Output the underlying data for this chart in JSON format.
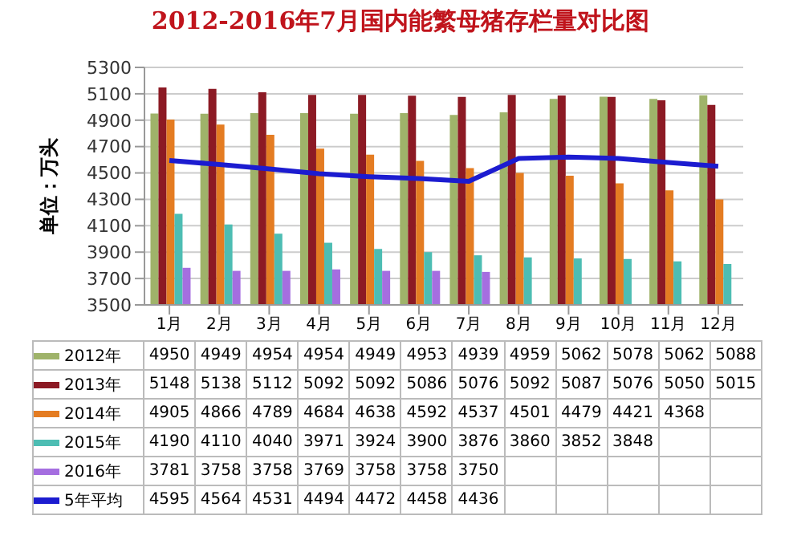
{
  "chart_data": {
    "type": "bar",
    "title": "2012-2016年7月国内能繁母猪存栏量对比图",
    "ylabel": "单位：万头",
    "categories": [
      "1月",
      "2月",
      "3月",
      "4月",
      "5月",
      "6月",
      "7月",
      "8月",
      "9月",
      "10月",
      "11月",
      "12月"
    ],
    "ylim": [
      3500,
      5300
    ],
    "yticks": [
      3500,
      3700,
      3900,
      4100,
      4300,
      4500,
      4700,
      4900,
      5100,
      5300
    ],
    "grid": "y",
    "legend": "bottom",
    "series": [
      {
        "name": "2012年",
        "color": "#9fb36a",
        "values": [
          4950,
          4949,
          4954,
          4954,
          4949,
          4953,
          4939,
          4959,
          5062,
          5078,
          5062,
          5088
        ],
        "value_labels": [
          "4950",
          "4949",
          "4954",
          "4954",
          "4949",
          "4953",
          "4939",
          "4959",
          "5062",
          "5078",
          "5062",
          "5088"
        ]
      },
      {
        "name": "2013年",
        "color": "#8c1a24",
        "values": [
          5148,
          5138,
          5112,
          5092,
          5092,
          5086,
          5076,
          5092,
          5087,
          5076,
          5050,
          5015
        ],
        "value_labels": [
          "5148",
          "5138",
          "5112",
          "5092",
          "5092",
          "5086",
          "5076",
          "5092",
          "5087",
          "5076",
          "5050",
          "5015"
        ]
      },
      {
        "name": "2014年",
        "color": "#e47c22",
        "values": [
          4905,
          4866,
          4789,
          4684,
          4638,
          4592,
          4537,
          4501,
          4479,
          4421,
          4368,
          4300
        ],
        "value_labels": [
          "4905",
          "4866",
          "4789",
          "4684",
          "4638",
          "4592",
          "4537",
          "4501",
          "4479",
          "4421",
          "4368",
          null
        ]
      },
      {
        "name": "2015年",
        "color": "#4dbdb3",
        "values": [
          4190,
          4110,
          4040,
          3971,
          3924,
          3900,
          3876,
          3860,
          3852,
          3848,
          3830,
          3810
        ],
        "value_labels": [
          "4190",
          "4110",
          "4040",
          "3971",
          "3924",
          "3900",
          "3876",
          "3860",
          "3852",
          "3848",
          null,
          null
        ]
      },
      {
        "name": "2016年",
        "color": "#a56ee0",
        "values": [
          3781,
          3758,
          3758,
          3769,
          3758,
          3758,
          3750,
          null,
          null,
          null,
          null,
          null
        ],
        "value_labels": [
          "3781",
          "3758",
          "3758",
          "3769",
          "3758",
          "3758",
          "3750",
          null,
          null,
          null,
          null,
          null
        ]
      },
      {
        "name": "5年平均",
        "type": "line",
        "color": "#1c1cd0",
        "values": [
          4595,
          4564,
          4531,
          4494,
          4472,
          4458,
          4436,
          4610,
          4620,
          4610,
          4580,
          4550
        ],
        "value_labels": [
          "4595",
          "4564",
          "4531",
          "4494",
          "4472",
          "4458",
          "4436",
          null,
          null,
          null,
          null,
          null
        ]
      }
    ]
  }
}
